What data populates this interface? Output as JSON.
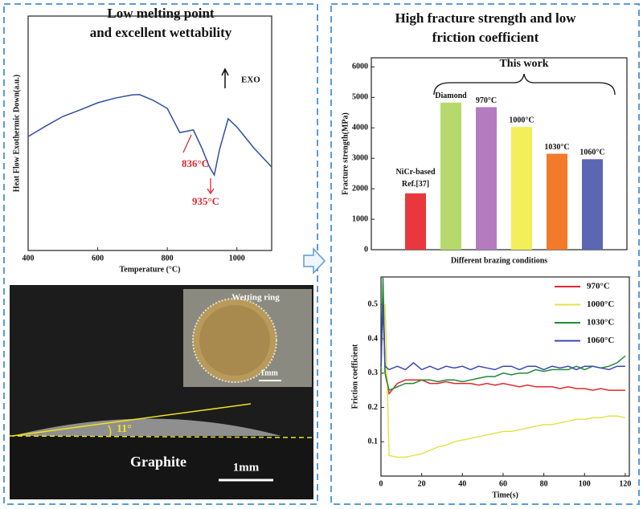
{
  "panels": [
    {
      "title": [
        "Low melting point",
        "and excellent wettability"
      ]
    },
    {
      "title": [
        "High fracture strength and low",
        "friction coefficient"
      ]
    }
  ],
  "photo": {
    "inset_label": "Wetting ring",
    "inset_scale": "1mm",
    "angle": "11°",
    "substrate": "Graphite",
    "scale": "1mm"
  },
  "chart_data": [
    {
      "type": "line",
      "xlabel": "Temperature (°C)",
      "ylabel": "Heat Flow Exothermic Down(a.u.)",
      "x": [
        400,
        450,
        500,
        550,
        600,
        650,
        700,
        720,
        760,
        800,
        836,
        860,
        875,
        900,
        920,
        935,
        950,
        975,
        1000,
        1050,
        1100
      ],
      "values": [
        4.86,
        5.3,
        5.72,
        6.0,
        6.3,
        6.5,
        6.64,
        6.65,
        6.4,
        6.06,
        5.03,
        5.1,
        5.14,
        4.35,
        3.6,
        3.22,
        4.3,
        5.62,
        5.27,
        4.35,
        3.56
      ],
      "color": "#2f4f9e",
      "xlim": [
        400,
        1100
      ],
      "ylim": [
        0,
        10
      ],
      "xticks": [
        400,
        600,
        800,
        1000
      ],
      "yticks": [],
      "annotations": [
        "836°C",
        "935°C",
        "EXO"
      ]
    },
    {
      "type": "bar",
      "xlabel": "Different brazing conditions",
      "ylabel": "Fracture strength(MPa)",
      "categories": [
        "NiCr-based Ref.[37]",
        "Diamond",
        "970°C",
        "1000°C",
        "1030°C",
        "1060°C"
      ],
      "values": [
        1850,
        4830,
        4680,
        4030,
        3150,
        2970
      ],
      "colors": [
        "#e8383d",
        "#b5d96a",
        "#b57bbf",
        "#f2ef5a",
        "#f27a2a",
        "#5b67b3"
      ],
      "ylim": [
        0,
        6300
      ],
      "yticks": [
        0,
        1000,
        2000,
        3000,
        4000,
        5000,
        6000
      ],
      "annotation": "This work"
    },
    {
      "type": "line",
      "xlabel": "Time(s)",
      "ylabel": "Friction coefficient",
      "x": [
        0,
        1,
        2,
        4,
        8,
        12,
        16,
        20,
        24,
        28,
        32,
        36,
        40,
        44,
        48,
        52,
        56,
        60,
        64,
        68,
        72,
        76,
        80,
        84,
        88,
        92,
        96,
        100,
        104,
        108,
        112,
        116,
        120
      ],
      "series": [
        {
          "name": "970°C",
          "color": "#e0282e",
          "values": [
            0.3,
            0.55,
            0.3,
            0.24,
            0.27,
            0.28,
            0.28,
            0.28,
            0.27,
            0.27,
            0.275,
            0.27,
            0.27,
            0.27,
            0.265,
            0.27,
            0.265,
            0.27,
            0.265,
            0.26,
            0.265,
            0.26,
            0.26,
            0.26,
            0.255,
            0.26,
            0.255,
            0.255,
            0.25,
            0.255,
            0.25,
            0.25,
            0.25
          ]
        },
        {
          "name": "1000°C",
          "color": "#e8e04a",
          "values": [
            0.3,
            0.5,
            0.5,
            0.06,
            0.055,
            0.055,
            0.06,
            0.065,
            0.075,
            0.085,
            0.09,
            0.1,
            0.105,
            0.11,
            0.115,
            0.12,
            0.125,
            0.13,
            0.13,
            0.135,
            0.14,
            0.145,
            0.15,
            0.15,
            0.155,
            0.16,
            0.165,
            0.165,
            0.17,
            0.17,
            0.175,
            0.175,
            0.17
          ]
        },
        {
          "name": "1030°C",
          "color": "#1f8a3a",
          "values": [
            0.3,
            0.58,
            0.3,
            0.25,
            0.26,
            0.27,
            0.27,
            0.28,
            0.28,
            0.275,
            0.28,
            0.28,
            0.275,
            0.28,
            0.285,
            0.29,
            0.29,
            0.3,
            0.295,
            0.3,
            0.3,
            0.31,
            0.305,
            0.31,
            0.31,
            0.31,
            0.32,
            0.31,
            0.32,
            0.315,
            0.32,
            0.33,
            0.35
          ]
        },
        {
          "name": "1060°C",
          "color": "#3a48b0",
          "values": [
            0.32,
            0.5,
            0.32,
            0.31,
            0.32,
            0.31,
            0.33,
            0.31,
            0.32,
            0.31,
            0.32,
            0.315,
            0.32,
            0.31,
            0.32,
            0.315,
            0.31,
            0.32,
            0.32,
            0.31,
            0.32,
            0.32,
            0.31,
            0.32,
            0.315,
            0.32,
            0.31,
            0.32,
            0.32,
            0.315,
            0.31,
            0.32,
            0.32
          ]
        }
      ],
      "xlim": [
        0,
        122
      ],
      "ylim": [
        0,
        0.58
      ],
      "xticks": [
        0,
        20,
        40,
        60,
        80,
        100,
        120
      ],
      "yticks": [
        0.1,
        0.2,
        0.3,
        0.4,
        0.5
      ]
    }
  ]
}
